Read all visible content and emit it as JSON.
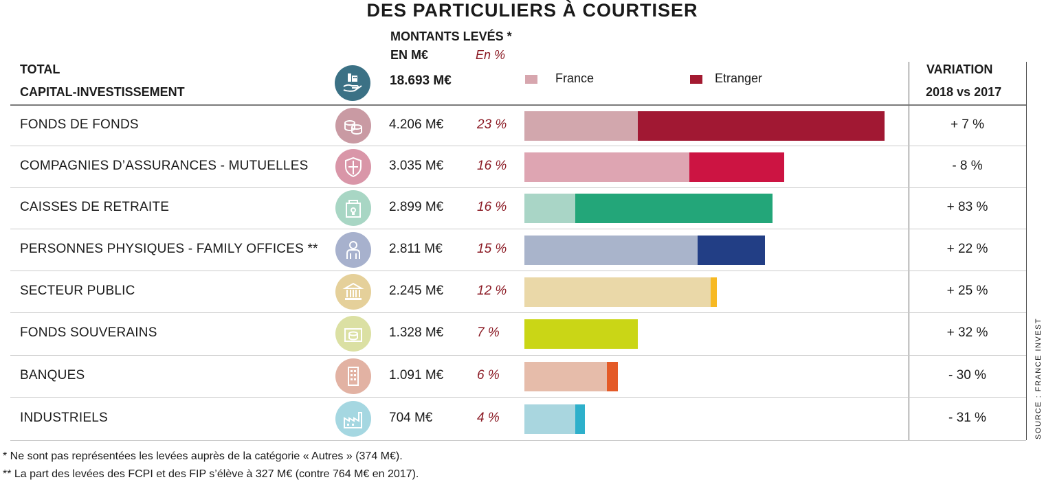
{
  "title": "DES PARTICULIERS À COURTISER",
  "header": {
    "total_line1": "TOTAL",
    "total_line2": "CAPITAL-INVESTISSEMENT",
    "amount_header_line1": "MONTANTS LEVÉS *",
    "amount_header_line2": "EN M€",
    "pct_header": "En %",
    "total_amount": "18.693 M€",
    "variation_line1": "VARIATION",
    "variation_line2": "2018 vs 2017"
  },
  "legend": [
    {
      "label": "France",
      "color": "#d7a6ae"
    },
    {
      "label": "Etranger",
      "color": "#a31a31"
    }
  ],
  "chart_data": {
    "type": "bar",
    "orientation": "horizontal",
    "stacked": true,
    "title": "DES PARTICULIERS À COURTISER",
    "categories": [
      "FONDS DE FONDS",
      "COMPAGNIES D’ASSURANCES - MUTUELLES",
      "CAISSES DE RETRAITE",
      "PERSONNES PHYSIQUES  - FAMILY OFFICES **",
      "SECTEUR PUBLIC",
      "FONDS SOUVERAINS",
      "BANQUES",
      "INDUSTRIELS"
    ],
    "amounts_label": [
      "4.206 M€",
      "3.035 M€",
      "2.899 M€",
      "2.811 M€",
      "2.245 M€",
      "1.328 M€",
      "1.091 M€",
      "704 M€"
    ],
    "amounts_meur": [
      4206,
      3035,
      2899,
      2811,
      2245,
      1328,
      1091,
      704
    ],
    "share_label": [
      "23 %",
      "16 %",
      "16 %",
      "15 %",
      "12 %",
      "7 %",
      "6 %",
      "4 %"
    ],
    "variation_label": [
      "+ 7 %",
      "- 8 %",
      "+ 83 %",
      "+ 22 %",
      "+ 25 %",
      "+ 32 %",
      "- 30 %",
      "- 31 %"
    ],
    "series": [
      {
        "name": "France",
        "values": [
          1321,
          1924,
          596,
          2025,
          2177,
          1328,
          961,
          593
        ]
      },
      {
        "name": "Etranger",
        "values": [
          2885,
          1111,
          2303,
          786,
          68,
          0,
          130,
          111
        ]
      }
    ],
    "row_colors": [
      {
        "france": "#d2a7ad",
        "etranger": "#a11833",
        "icon": "#c99aa3"
      },
      {
        "france": "#dea5b2",
        "etranger": "#cc1442",
        "icon": "#d996a8"
      },
      {
        "france": "#a9d5c6",
        "etranger": "#23a679",
        "icon": "#a8d6c4"
      },
      {
        "france": "#a9b4cb",
        "etranger": "#223e85",
        "icon": "#a7b1cd"
      },
      {
        "france": "#ead8a8",
        "etranger": "#f7b923",
        "icon": "#e5d09a"
      },
      {
        "france": "#cad616",
        "etranger": "#cad616",
        "icon": "#dbe0a3"
      },
      {
        "france": "#e6bcaa",
        "etranger": "#e45a27",
        "icon": "#e2b2a3"
      },
      {
        "france": "#a9d6df",
        "etranger": "#2eb0cb",
        "icon": "#a5d7e1"
      }
    ],
    "icons": [
      "coins-stack-icon",
      "shield-icon",
      "retirement-box-icon",
      "person-icon",
      "bank-building-icon",
      "sovereign-coins-icon",
      "office-tower-icon",
      "factory-icon"
    ],
    "grid": false,
    "legend_position": "top"
  },
  "footnotes": {
    "note1": "* Ne sont pas représentées les levées auprès de la catégorie « Autres » (374 M€).",
    "note2": "** La part des levées des FCPI et des FIP s’élève à 327 M€ (contre 764 M€ en 2017)."
  },
  "source": "SOURCE : FRANCE INVEST",
  "total_icon": {
    "name": "hand-buildings-icon",
    "color": "#3b7185"
  }
}
